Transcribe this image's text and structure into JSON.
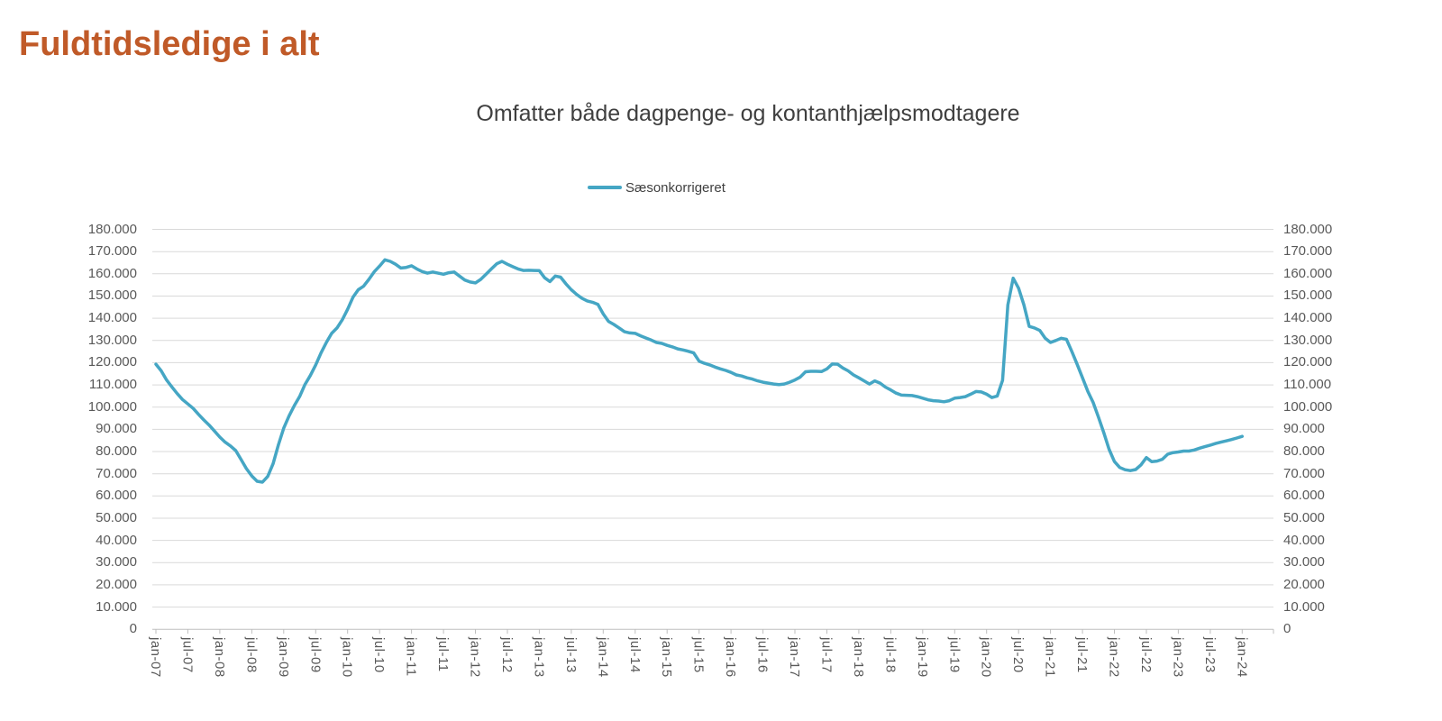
{
  "page": {
    "title": "Fuldtidsledige i alt"
  },
  "colors": {
    "title": "#c05a28",
    "subtitle": "#3f3f3f",
    "line": "#45a6c4",
    "axis_text": "#595959",
    "gridline": "#d9d9d9",
    "axis_line": "#bfbfbf"
  },
  "chart_data": {
    "type": "line",
    "title": "Omfatter både dagpenge- og kontanthjælpsmodtagere",
    "legend_entries": [
      "Sæsonkorrigeret"
    ],
    "legend_position": "top-center",
    "grid": true,
    "x_start": "jan-07",
    "x_end": "jan-24",
    "frequency": "monthly",
    "ylim": [
      0,
      180000
    ],
    "y_tick_step": 10000,
    "y_tick_labels": [
      "0",
      "10.000",
      "20.000",
      "30.000",
      "40.000",
      "50.000",
      "60.000",
      "70.000",
      "80.000",
      "90.000",
      "100.000",
      "110.000",
      "120.000",
      "130.000",
      "140.000",
      "150.000",
      "160.000",
      "170.000",
      "180.000"
    ],
    "x_tick_labels": [
      "jan-07",
      "jul-07",
      "jan-08",
      "jul-08",
      "jan-09",
      "jul-09",
      "jan-10",
      "jul-10",
      "jan-11",
      "jul-11",
      "jan-12",
      "jul-12",
      "jan-13",
      "jul-13",
      "jan-14",
      "jul-14",
      "jan-15",
      "jul-15",
      "jan-16",
      "jul-16",
      "jan-17",
      "jul-17",
      "jan-18",
      "jul-18",
      "jan-19",
      "jul-19",
      "jan-20",
      "jul-20",
      "jan-21",
      "jul-21",
      "jan-22",
      "jul-22",
      "jan-23",
      "jul-23",
      "jan-24"
    ],
    "series": [
      {
        "name": "Sæsonkorrigeret",
        "color": "#45a6c4",
        "values": [
          119300,
          116300,
          112200,
          109100,
          106100,
          103400,
          101400,
          99400,
          96700,
          94200,
          91900,
          89200,
          86500,
          84200,
          82500,
          80400,
          76400,
          72300,
          69000,
          66600,
          66200,
          68800,
          74500,
          83000,
          90500,
          96000,
          100700,
          104800,
          110200,
          114200,
          119000,
          124400,
          129100,
          133200,
          135600,
          139300,
          144000,
          149400,
          152800,
          154400,
          157500,
          160900,
          163500,
          166300,
          165600,
          164300,
          162600,
          162900,
          163600,
          162200,
          161000,
          160300,
          160800,
          160300,
          159800,
          160500,
          160800,
          159000,
          157200,
          156300,
          155900,
          157500,
          159800,
          162200,
          164500,
          165600,
          164300,
          163200,
          162200,
          161500,
          161600,
          161500,
          161400,
          158200,
          156500,
          159000,
          158500,
          155500,
          152800,
          150700,
          149000,
          147800,
          147200,
          146200,
          142000,
          138600,
          137200,
          135600,
          133900,
          133400,
          133200,
          132100,
          131100,
          130200,
          129100,
          128700,
          127800,
          127100,
          126200,
          125700,
          125100,
          124400,
          120700,
          119700,
          119000,
          118000,
          117200,
          116500,
          115600,
          114500,
          114000,
          113200,
          112600,
          111800,
          111200,
          110800,
          110400,
          110100,
          110400,
          111200,
          112200,
          113500,
          115900,
          116100,
          116100,
          116000,
          117200,
          119400,
          119300,
          117600,
          116300,
          114500,
          113200,
          111800,
          110400,
          111800,
          110800,
          109000,
          107700,
          106300,
          105400,
          105300,
          105200,
          104700,
          104000,
          103300,
          102900,
          102700,
          102400,
          102900,
          104000,
          104300,
          104700,
          105800,
          107000,
          106800,
          105800,
          104300,
          105000,
          112000,
          146000,
          158000,
          153500,
          146000,
          136300,
          135600,
          134500,
          131000,
          129100,
          130000,
          131000,
          130500,
          125100,
          119300,
          113200,
          107100,
          102100,
          95500,
          88500,
          81000,
          75500,
          72800,
          71800,
          71400,
          71900,
          74000,
          77300,
          75400,
          75700,
          76500,
          78800,
          79500,
          79800,
          80200,
          80200,
          80700,
          81500,
          82200,
          82900,
          83600,
          84200,
          84800,
          85400,
          86100,
          86800
        ]
      }
    ]
  }
}
